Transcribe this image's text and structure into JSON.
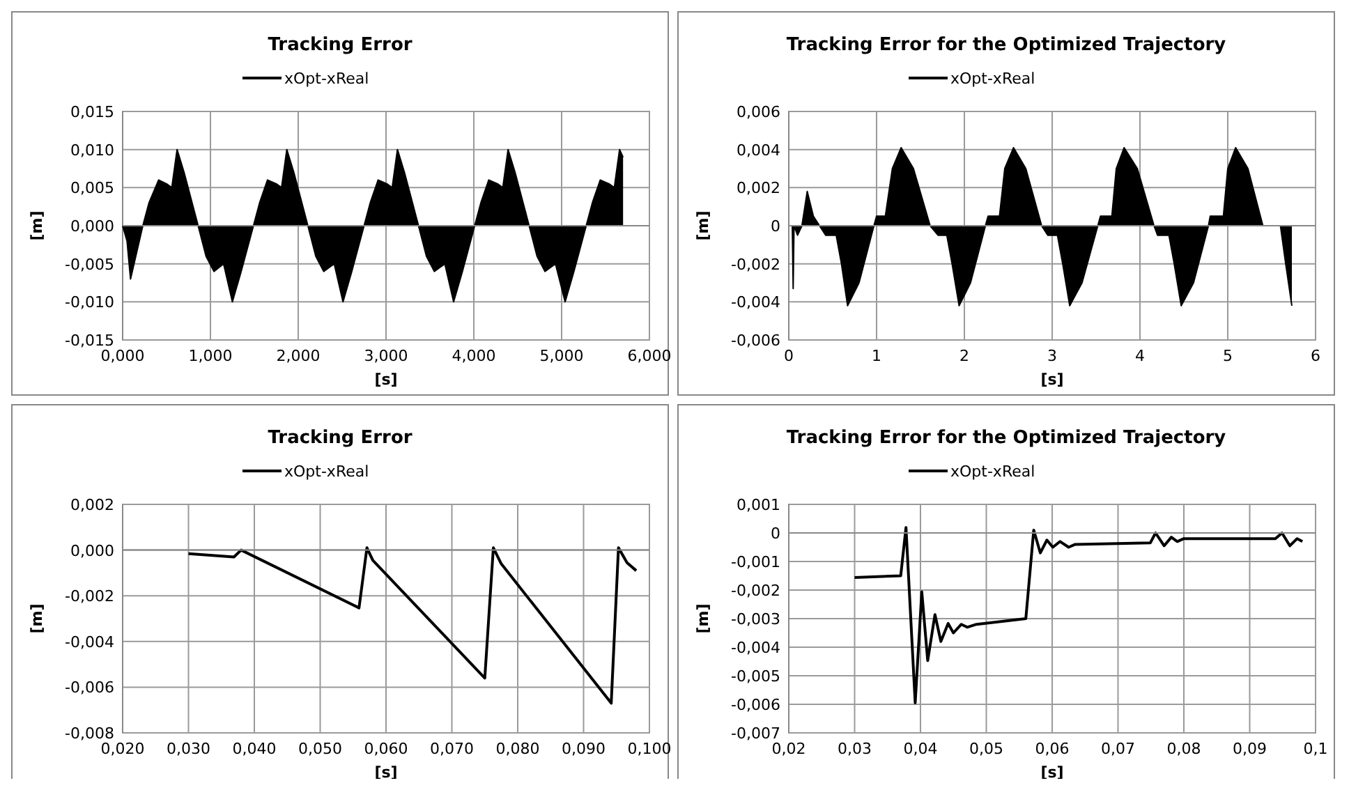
{
  "chart_data": [
    {
      "type": "area",
      "title": "Tracking Error",
      "xlabel": "[s]",
      "ylabel": "[m]",
      "legend": "top",
      "grid": true,
      "xlim": [
        0,
        6
      ],
      "xticks": [
        {
          "value": 0,
          "label": "0,000"
        },
        {
          "value": 1,
          "label": "1,000"
        },
        {
          "value": 2,
          "label": "2,000"
        },
        {
          "value": 3,
          "label": "3,000"
        },
        {
          "value": 4,
          "label": "4,000"
        },
        {
          "value": 5,
          "label": "5,000"
        },
        {
          "value": 6,
          "label": "6,000"
        }
      ],
      "ylim": [
        -0.015,
        0.015
      ],
      "yticks": [
        {
          "value": -0.015,
          "label": "-0,015"
        },
        {
          "value": -0.01,
          "label": "-0,010"
        },
        {
          "value": -0.005,
          "label": "-0,005"
        },
        {
          "value": 0,
          "label": "0,000"
        },
        {
          "value": 0.005,
          "label": "0,005"
        },
        {
          "value": 0.01,
          "label": "0,010"
        },
        {
          "value": 0.015,
          "label": "0,015"
        }
      ],
      "series": [
        {
          "name": "xOpt-xReal",
          "color": "#000000",
          "x": [
            0,
            0.05,
            0.09,
            0.15,
            0.23,
            0.3,
            0.41,
            0.5,
            0.56,
            0.62,
            0.7,
            0.86,
            0.95,
            1.04,
            1.15,
            1.25,
            1.35,
            1.49,
            1.56,
            1.65,
            1.75,
            1.81,
            1.87,
            1.95,
            2.11,
            2.2,
            2.29,
            2.41,
            2.51,
            2.61,
            2.75,
            2.82,
            2.91,
            3.01,
            3.07,
            3.13,
            3.21,
            3.37,
            3.46,
            3.55,
            3.67,
            3.77,
            3.87,
            4.01,
            4.08,
            4.17,
            4.27,
            4.33,
            4.39,
            4.47,
            4.63,
            4.72,
            4.81,
            4.93,
            5.04,
            5.14,
            5.28,
            5.35,
            5.44,
            5.54,
            5.6,
            5.66,
            5.7
          ],
          "values": [
            0,
            -0.002,
            -0.007,
            -0.004,
            0,
            0.003,
            0.006,
            0.0055,
            0.005,
            0.01,
            0.007,
            0,
            -0.004,
            -0.006,
            -0.005,
            -0.01,
            -0.006,
            0,
            0.003,
            0.006,
            0.0055,
            0.005,
            0.01,
            0.007,
            0,
            -0.004,
            -0.006,
            -0.005,
            -0.01,
            -0.006,
            0,
            0.003,
            0.006,
            0.0055,
            0.005,
            0.01,
            0.007,
            0,
            -0.004,
            -0.006,
            -0.005,
            -0.01,
            -0.006,
            0,
            0.003,
            0.006,
            0.0055,
            0.005,
            0.01,
            0.007,
            0,
            -0.004,
            -0.006,
            -0.005,
            -0.01,
            -0.006,
            0,
            0.003,
            0.006,
            0.0055,
            0.005,
            0.01,
            0.009
          ]
        }
      ]
    },
    {
      "type": "area",
      "title": "Tracking Error for the Optimized Trajectory",
      "xlabel": "[s]",
      "ylabel": "[m]",
      "legend": "top",
      "grid": true,
      "xlim": [
        0,
        6
      ],
      "xticks": [
        0,
        1,
        2,
        3,
        4,
        5,
        6
      ],
      "ylim": [
        -0.006,
        0.006
      ],
      "yticks": [
        {
          "value": -0.006,
          "label": "-0,006"
        },
        {
          "value": -0.004,
          "label": "-0,004"
        },
        {
          "value": -0.002,
          "label": "-0,002"
        },
        0,
        {
          "value": 0.002,
          "label": "0,002"
        },
        {
          "value": 0.004,
          "label": "0,004"
        },
        {
          "value": 0.006,
          "label": "0,006"
        }
      ],
      "series": [
        {
          "name": "xOpt-xReal",
          "color": "#000000",
          "x": [
            0.04,
            0.05,
            0.06,
            0.1,
            0.15,
            0.21,
            0.28,
            0.35,
            0.42,
            0.54,
            0.6,
            0.67,
            0.8,
            0.97,
            1.0,
            1.1,
            1.18,
            1.28,
            1.42,
            1.61,
            1.7,
            1.8,
            1.86,
            1.94,
            2.07,
            2.24,
            2.27,
            2.4,
            2.46,
            2.56,
            2.7,
            2.88,
            2.95,
            3.06,
            3.12,
            3.2,
            3.34,
            3.52,
            3.55,
            3.68,
            3.73,
            3.82,
            3.97,
            4.16,
            4.2,
            4.33,
            4.39,
            4.47,
            4.61,
            4.78,
            4.8,
            4.95,
            5.0,
            5.09,
            5.23,
            5.4,
            5.6,
            5.66,
            5.73
          ],
          "values": [
            0,
            -0.0033,
            0,
            -0.0005,
            0,
            0.0018,
            0.0005,
            0,
            -0.0005,
            -0.0005,
            -0.002,
            -0.0042,
            -0.003,
            0,
            0.0005,
            0.0005,
            0.003,
            0.0041,
            0.003,
            0,
            -0.0005,
            -0.0005,
            -0.002,
            -0.0042,
            -0.003,
            0,
            0.0005,
            0.0005,
            0.003,
            0.0041,
            0.003,
            0,
            -0.0005,
            -0.0005,
            -0.002,
            -0.0042,
            -0.003,
            0,
            0.0005,
            0.0005,
            0.003,
            0.0041,
            0.003,
            0,
            -0.0005,
            -0.0005,
            -0.002,
            -0.0042,
            -0.003,
            0,
            0.0005,
            0.0005,
            0.003,
            0.0041,
            0.003,
            0,
            0,
            -0.002,
            -0.0042
          ]
        }
      ]
    },
    {
      "type": "line",
      "title": "Tracking Error",
      "xlabel": "[s]",
      "ylabel": "[m]",
      "legend": "top",
      "grid": true,
      "xlim": [
        0.02,
        0.1
      ],
      "xticks": [
        {
          "value": 0.02,
          "label": "0,020"
        },
        {
          "value": 0.03,
          "label": "0,030"
        },
        {
          "value": 0.04,
          "label": "0,040"
        },
        {
          "value": 0.05,
          "label": "0,050"
        },
        {
          "value": 0.06,
          "label": "0,060"
        },
        {
          "value": 0.07,
          "label": "0,070"
        },
        {
          "value": 0.08,
          "label": "0,080"
        },
        {
          "value": 0.09,
          "label": "0,090"
        },
        {
          "value": 0.1,
          "label": "0,100"
        }
      ],
      "ylim": [
        -0.008,
        0.002
      ],
      "yticks": [
        {
          "value": -0.008,
          "label": "-0,008"
        },
        {
          "value": -0.006,
          "label": "-0,006"
        },
        {
          "value": -0.004,
          "label": "-0,004"
        },
        {
          "value": -0.002,
          "label": "-0,002"
        },
        {
          "value": 0,
          "label": "0,000"
        },
        {
          "value": 0.002,
          "label": "0,002"
        }
      ],
      "series": [
        {
          "name": "xOpt-xReal",
          "color": "#000000",
          "x": [
            0.03,
            0.0369,
            0.038,
            0.0559,
            0.0571,
            0.058,
            0.075,
            0.0763,
            0.0775,
            0.0942,
            0.0953,
            0.0966,
            0.098
          ],
          "values": [
            -0.00016,
            -0.0003,
            0,
            -0.00253,
            0.0001,
            -0.00045,
            -0.0056,
            0.0001,
            -0.0006,
            -0.0067,
            0.0001,
            -0.00055,
            -0.0009
          ]
        }
      ]
    },
    {
      "type": "line",
      "title": "Tracking Error for the Optimized Trajectory",
      "xlabel": "[s]",
      "ylabel": "[m]",
      "legend": "top",
      "grid": true,
      "xlim": [
        0.02,
        0.1
      ],
      "xticks": [
        {
          "value": 0.02,
          "label": "0,02"
        },
        {
          "value": 0.03,
          "label": "0,03"
        },
        {
          "value": 0.04,
          "label": "0,04"
        },
        {
          "value": 0.05,
          "label": "0,05"
        },
        {
          "value": 0.06,
          "label": "0,06"
        },
        {
          "value": 0.07,
          "label": "0,07"
        },
        {
          "value": 0.08,
          "label": "0,08"
        },
        {
          "value": 0.09,
          "label": "0,09"
        },
        {
          "value": 0.1,
          "label": "0,1"
        }
      ],
      "ylim": [
        -0.007,
        0.001
      ],
      "yticks": [
        {
          "value": -0.007,
          "label": "-0,007"
        },
        {
          "value": -0.006,
          "label": "-0,006"
        },
        {
          "value": -0.005,
          "label": "-0,005"
        },
        {
          "value": -0.004,
          "label": "-0,004"
        },
        {
          "value": -0.003,
          "label": "-0,003"
        },
        {
          "value": -0.002,
          "label": "-0,002"
        },
        {
          "value": -0.001,
          "label": "-0,001"
        },
        0,
        {
          "value": 0.001,
          "label": "0,001"
        }
      ],
      "series": [
        {
          "name": "xOpt-xReal",
          "color": "#000000",
          "x": [
            0.03,
            0.037,
            0.0378,
            0.0392,
            0.0402,
            0.0411,
            0.0422,
            0.0431,
            0.0442,
            0.045,
            0.0462,
            0.0471,
            0.0485,
            0.056,
            0.0572,
            0.0582,
            0.0592,
            0.0601,
            0.0612,
            0.0625,
            0.0635,
            0.0749,
            0.0757,
            0.077,
            0.0781,
            0.079,
            0.08,
            0.0939,
            0.0949,
            0.0961,
            0.0972,
            0.098
          ],
          "values": [
            -0.00156,
            -0.0015,
            0.00019,
            -0.00595,
            -0.00206,
            -0.00447,
            -0.00286,
            -0.0038,
            -0.00317,
            -0.0035,
            -0.0032,
            -0.0033,
            -0.0032,
            -0.003,
            0.0001,
            -0.0007,
            -0.00025,
            -0.0005,
            -0.0003,
            -0.0005,
            -0.0004,
            -0.00035,
            0,
            -0.00045,
            -0.00015,
            -0.0003,
            -0.0002,
            -0.0002,
            0,
            -0.00045,
            -0.0002,
            -0.0003
          ]
        }
      ]
    }
  ]
}
